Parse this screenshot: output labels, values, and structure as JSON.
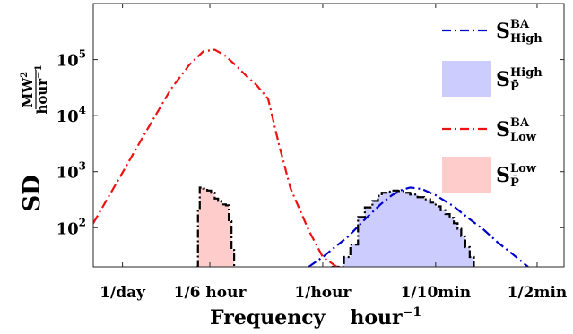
{
  "chart_data": {
    "type": "line",
    "title": "",
    "xlabel": "Frequency",
    "xlabel_unit": "hour",
    "xlabel_unit_exp": "−1",
    "ylabel": "SD",
    "ylabel_unit_num": "MW",
    "ylabel_unit_num_exp": "2",
    "ylabel_unit_den": "hour",
    "ylabel_unit_den_exp": "−1",
    "xscale": "log",
    "yscale": "log",
    "x_unit": "cycles per hour",
    "xlim": [
      0.0262,
      46.0
    ],
    "ylim": [
      20,
      1000000
    ],
    "grid": false,
    "legend_position": "top-right",
    "x_ticks": [
      {
        "value": 0.041667,
        "label": "1/day"
      },
      {
        "value": 0.166667,
        "label": "1/6 hour"
      },
      {
        "value": 1,
        "label": "1/hour"
      },
      {
        "value": 6,
        "label": "1/10min"
      },
      {
        "value": 30,
        "label": "1/2min"
      }
    ],
    "y_ticks": [
      {
        "value": 100,
        "base": "10",
        "exp": "2"
      },
      {
        "value": 1000,
        "base": "10",
        "exp": "3"
      },
      {
        "value": 10000,
        "base": "10",
        "exp": "4"
      },
      {
        "value": 100000,
        "base": "10",
        "exp": "5"
      }
    ],
    "series": [
      {
        "key": "ba_high",
        "kind": "line",
        "color": "#0000cc",
        "dash": "10 4 2 4",
        "legend": {
          "base": "S",
          "sup": "BA",
          "sub": "High"
        },
        "x": [
          0.8,
          1.0,
          1.5,
          2.0,
          2.5,
          3.0,
          3.5,
          4.0,
          4.5,
          5.0,
          6.0,
          8.0,
          10.0,
          13.0,
          16.0,
          20.0,
          26.0
        ],
        "y": [
          20,
          30,
          70,
          150,
          260,
          380,
          470,
          520,
          505,
          470,
          380,
          240,
          150,
          90,
          55,
          35,
          20
        ]
      },
      {
        "key": "p_high",
        "kind": "area-step",
        "color": "#ccccff",
        "edge_color": "#000000",
        "dash": "9 3 2 3",
        "legend": {
          "base": "S",
          "sup": "High",
          "sub": "P̄"
        },
        "x": [
          1.15,
          1.4,
          1.55,
          1.75,
          1.95,
          2.2,
          2.4,
          2.55,
          2.8,
          3.0,
          3.3,
          3.6,
          4.0,
          4.5,
          5.0,
          5.5,
          6.0,
          6.5,
          7.0,
          7.5,
          8.0,
          8.5,
          9.0,
          9.6,
          10.3,
          11.0
        ],
        "y": [
          20,
          30,
          50,
          155,
          230,
          300,
          370,
          420,
          440,
          460,
          450,
          420,
          390,
          350,
          320,
          280,
          240,
          205,
          175,
          150,
          120,
          95,
          70,
          45,
          30,
          20
        ]
      },
      {
        "key": "ba_low",
        "kind": "line",
        "color": "#ee1111",
        "dash": "10 4 2 4",
        "legend": {
          "base": "S",
          "sup": "BA",
          "sub": "Low"
        },
        "x": [
          0.0262,
          0.04,
          0.06,
          0.09,
          0.12,
          0.15,
          0.18,
          0.21,
          0.25,
          0.3,
          0.35,
          0.42,
          0.5,
          0.6,
          0.8,
          1.0,
          1.25
        ],
        "y": [
          120,
          800,
          5000,
          30000,
          80000,
          140000,
          150000,
          120000,
          80000,
          50000,
          35000,
          20000,
          3000,
          500,
          90,
          30,
          20
        ]
      },
      {
        "key": "p_low",
        "kind": "area-step",
        "color": "#ffcccc",
        "edge_color": "#000000",
        "dash": "9 3 2 3",
        "legend": {
          "base": "S",
          "sup": "Low",
          "sub": "P̄"
        },
        "x": [
          0.135,
          0.138,
          0.142,
          0.15,
          0.16,
          0.17,
          0.18,
          0.19,
          0.2,
          0.215,
          0.225,
          0.235,
          0.245
        ],
        "y": [
          20,
          200,
          520,
          500,
          460,
          420,
          330,
          300,
          260,
          250,
          130,
          40,
          20
        ]
      }
    ]
  }
}
